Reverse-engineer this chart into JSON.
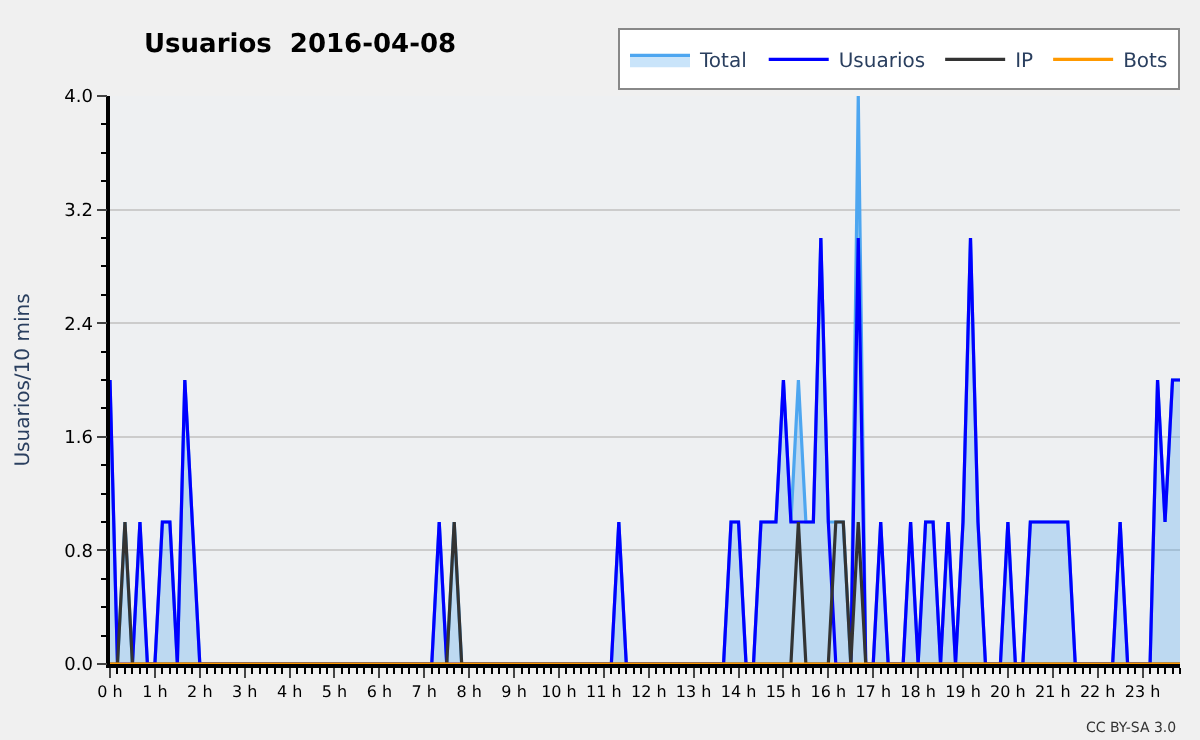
{
  "chart_data": {
    "type": "line",
    "title": "Usuarios  2016-04-08",
    "ylabel": "Usuarios/10 mins",
    "x": [
      0,
      0.1667,
      0.3333,
      0.5,
      0.6667,
      0.8333,
      1,
      1.1667,
      1.3333,
      1.5,
      1.6667,
      1.8333,
      2,
      2.1667,
      2.3333,
      2.5,
      2.6667,
      2.8333,
      3,
      3.1667,
      3.3333,
      3.5,
      3.6667,
      3.8333,
      4,
      4.1667,
      4.3333,
      4.5,
      4.6667,
      4.8333,
      5,
      5.1667,
      5.3333,
      5.5,
      5.6667,
      5.8333,
      6,
      6.1667,
      6.3333,
      6.5,
      6.6667,
      6.8333,
      7,
      7.1667,
      7.3333,
      7.5,
      7.6667,
      7.8333,
      8,
      8.1667,
      8.3333,
      8.5,
      8.6667,
      8.8333,
      9,
      9.1667,
      9.3333,
      9.5,
      9.6667,
      9.8333,
      10,
      10.1667,
      10.3333,
      10.5,
      10.6667,
      10.8333,
      11,
      11.1667,
      11.3333,
      11.5,
      11.6667,
      11.8333,
      12,
      12.1667,
      12.3333,
      12.5,
      12.6667,
      12.8333,
      13,
      13.1667,
      13.3333,
      13.5,
      13.6667,
      13.8333,
      14,
      14.1667,
      14.3333,
      14.5,
      14.6667,
      14.8333,
      15,
      15.1667,
      15.3333,
      15.5,
      15.6667,
      15.8333,
      16,
      16.1667,
      16.3333,
      16.5,
      16.6667,
      16.8333,
      17,
      17.1667,
      17.3333,
      17.5,
      17.6667,
      17.8333,
      18,
      18.1667,
      18.3333,
      18.5,
      18.6667,
      18.8333,
      19,
      19.1667,
      19.3333,
      19.5,
      19.6667,
      19.8333,
      20,
      20.1667,
      20.3333,
      20.5,
      20.6667,
      20.8333,
      21,
      21.1667,
      21.3333,
      21.5,
      21.6667,
      21.8333,
      22,
      22.1667,
      22.3333,
      22.5,
      22.6667,
      22.8333,
      23,
      23.1667,
      23.3333,
      23.5,
      23.6667,
      23.8333
    ],
    "series": [
      {
        "name": "Total",
        "type": "area",
        "color": "#4da6f0",
        "values": [
          2,
          0,
          1,
          0,
          1,
          0,
          0,
          1,
          1,
          0,
          2,
          1,
          0,
          0,
          0,
          0,
          0,
          0,
          0,
          0,
          0,
          0,
          0,
          0,
          0,
          0,
          0,
          0,
          0,
          0,
          0,
          0,
          0,
          0,
          0,
          0,
          0,
          0,
          0,
          0,
          0,
          0,
          0,
          0,
          1,
          0,
          1,
          0,
          0,
          0,
          0,
          0,
          0,
          0,
          0,
          0,
          0,
          0,
          0,
          0,
          0,
          0,
          0,
          0,
          0,
          0,
          0,
          0,
          1,
          0,
          0,
          0,
          0,
          0,
          0,
          0,
          0,
          0,
          0,
          0,
          0,
          0,
          0,
          1,
          1,
          0,
          0,
          1,
          1,
          1,
          2,
          1,
          2,
          1,
          1,
          3,
          1,
          1,
          1,
          0,
          4,
          0,
          0,
          1,
          0,
          0,
          0,
          1,
          0,
          1,
          1,
          0,
          1,
          0,
          1,
          3,
          1,
          0,
          0,
          0,
          1,
          0,
          0,
          1,
          1,
          1,
          1,
          1,
          1,
          0,
          0,
          0,
          0,
          0,
          0,
          1,
          0,
          0,
          0,
          0,
          2,
          1,
          2,
          2
        ]
      },
      {
        "name": "Usuarios",
        "color": "#0000ff",
        "values": [
          2,
          0,
          0,
          0,
          1,
          0,
          0,
          1,
          1,
          0,
          2,
          1,
          0,
          0,
          0,
          0,
          0,
          0,
          0,
          0,
          0,
          0,
          0,
          0,
          0,
          0,
          0,
          0,
          0,
          0,
          0,
          0,
          0,
          0,
          0,
          0,
          0,
          0,
          0,
          0,
          0,
          0,
          0,
          0,
          1,
          0,
          0,
          0,
          0,
          0,
          0,
          0,
          0,
          0,
          0,
          0,
          0,
          0,
          0,
          0,
          0,
          0,
          0,
          0,
          0,
          0,
          0,
          0,
          1,
          0,
          0,
          0,
          0,
          0,
          0,
          0,
          0,
          0,
          0,
          0,
          0,
          0,
          0,
          1,
          1,
          0,
          0,
          1,
          1,
          1,
          2,
          1,
          1,
          1,
          1,
          3,
          1,
          0,
          0,
          0,
          3,
          0,
          0,
          1,
          0,
          0,
          0,
          1,
          0,
          1,
          1,
          0,
          1,
          0,
          1,
          3,
          1,
          0,
          0,
          0,
          1,
          0,
          0,
          1,
          1,
          1,
          1,
          1,
          1,
          0,
          0,
          0,
          0,
          0,
          0,
          1,
          0,
          0,
          0,
          0,
          2,
          1,
          2,
          2
        ]
      },
      {
        "name": "IP",
        "color": "#333333",
        "values": [
          0,
          0,
          1,
          0,
          0,
          0,
          0,
          0,
          0,
          0,
          0,
          0,
          0,
          0,
          0,
          0,
          0,
          0,
          0,
          0,
          0,
          0,
          0,
          0,
          0,
          0,
          0,
          0,
          0,
          0,
          0,
          0,
          0,
          0,
          0,
          0,
          0,
          0,
          0,
          0,
          0,
          0,
          0,
          0,
          0,
          0,
          1,
          0,
          0,
          0,
          0,
          0,
          0,
          0,
          0,
          0,
          0,
          0,
          0,
          0,
          0,
          0,
          0,
          0,
          0,
          0,
          0,
          0,
          0,
          0,
          0,
          0,
          0,
          0,
          0,
          0,
          0,
          0,
          0,
          0,
          0,
          0,
          0,
          0,
          0,
          0,
          0,
          0,
          0,
          0,
          0,
          0,
          1,
          0,
          0,
          0,
          0,
          1,
          1,
          0,
          1,
          0,
          0,
          0,
          0,
          0,
          0,
          0,
          0,
          0,
          0,
          0,
          0,
          0,
          0,
          0,
          0,
          0,
          0,
          0,
          0,
          0,
          0,
          0,
          0,
          0,
          0,
          0,
          0,
          0,
          0,
          0,
          0,
          0,
          0,
          0,
          0,
          0,
          0,
          0,
          0,
          0,
          0,
          0
        ]
      },
      {
        "name": "Bots",
        "color": "#ff9900",
        "values": [
          0,
          0,
          0,
          0,
          0,
          0,
          0,
          0,
          0,
          0,
          0,
          0,
          0,
          0,
          0,
          0,
          0,
          0,
          0,
          0,
          0,
          0,
          0,
          0,
          0,
          0,
          0,
          0,
          0,
          0,
          0,
          0,
          0,
          0,
          0,
          0,
          0,
          0,
          0,
          0,
          0,
          0,
          0,
          0,
          0,
          0,
          0,
          0,
          0,
          0,
          0,
          0,
          0,
          0,
          0,
          0,
          0,
          0,
          0,
          0,
          0,
          0,
          0,
          0,
          0,
          0,
          0,
          0,
          0,
          0,
          0,
          0,
          0,
          0,
          0,
          0,
          0,
          0,
          0,
          0,
          0,
          0,
          0,
          0,
          0,
          0,
          0,
          0,
          0,
          0,
          0,
          0,
          0,
          0,
          0,
          0,
          0,
          0,
          0,
          0,
          0,
          0,
          0,
          0,
          0,
          0,
          0,
          0,
          0,
          0,
          0,
          0,
          0,
          0,
          0,
          0,
          0,
          0,
          0,
          0,
          0,
          0,
          0,
          0,
          0,
          0,
          0,
          0,
          0,
          0,
          0,
          0,
          0,
          0,
          0,
          0,
          0,
          0,
          0,
          0,
          0,
          0,
          0,
          0
        ]
      }
    ],
    "xlim": [
      0,
      23.8333
    ],
    "xticks": [
      {
        "value": 0,
        "label": "0 h"
      },
      {
        "value": 1,
        "label": "1 h"
      },
      {
        "value": 2,
        "label": "2 h"
      },
      {
        "value": 3,
        "label": "3 h"
      },
      {
        "value": 4,
        "label": "4 h"
      },
      {
        "value": 5,
        "label": "5 h"
      },
      {
        "value": 6,
        "label": "6 h"
      },
      {
        "value": 7,
        "label": "7 h"
      },
      {
        "value": 8,
        "label": "8 h"
      },
      {
        "value": 9,
        "label": "9 h"
      },
      {
        "value": 10,
        "label": "10 h"
      },
      {
        "value": 11,
        "label": "11 h"
      },
      {
        "value": 12,
        "label": "12 h"
      },
      {
        "value": 13,
        "label": "13 h"
      },
      {
        "value": 14,
        "label": "14 h"
      },
      {
        "value": 15,
        "label": "15 h"
      },
      {
        "value": 16,
        "label": "16 h"
      },
      {
        "value": 17,
        "label": "17 h"
      },
      {
        "value": 18,
        "label": "18 h"
      },
      {
        "value": 19,
        "label": "19 h"
      },
      {
        "value": 20,
        "label": "20 h"
      },
      {
        "value": 21,
        "label": "21 h"
      },
      {
        "value": 22,
        "label": "22 h"
      },
      {
        "value": 23,
        "label": "23 h"
      }
    ],
    "ylim": [
      0,
      4
    ],
    "yticks": [
      {
        "value": 0,
        "label": "0.0"
      },
      {
        "value": 0.8,
        "label": "0.8"
      },
      {
        "value": 1.6,
        "label": "1.6"
      },
      {
        "value": 2.4,
        "label": "2.4"
      },
      {
        "value": 3.2,
        "label": "3.2"
      },
      {
        "value": 4,
        "label": "4.0"
      }
    ],
    "grid": "y",
    "legend": "top right",
    "annotations": [
      "CC BY-SA 3.0"
    ]
  }
}
